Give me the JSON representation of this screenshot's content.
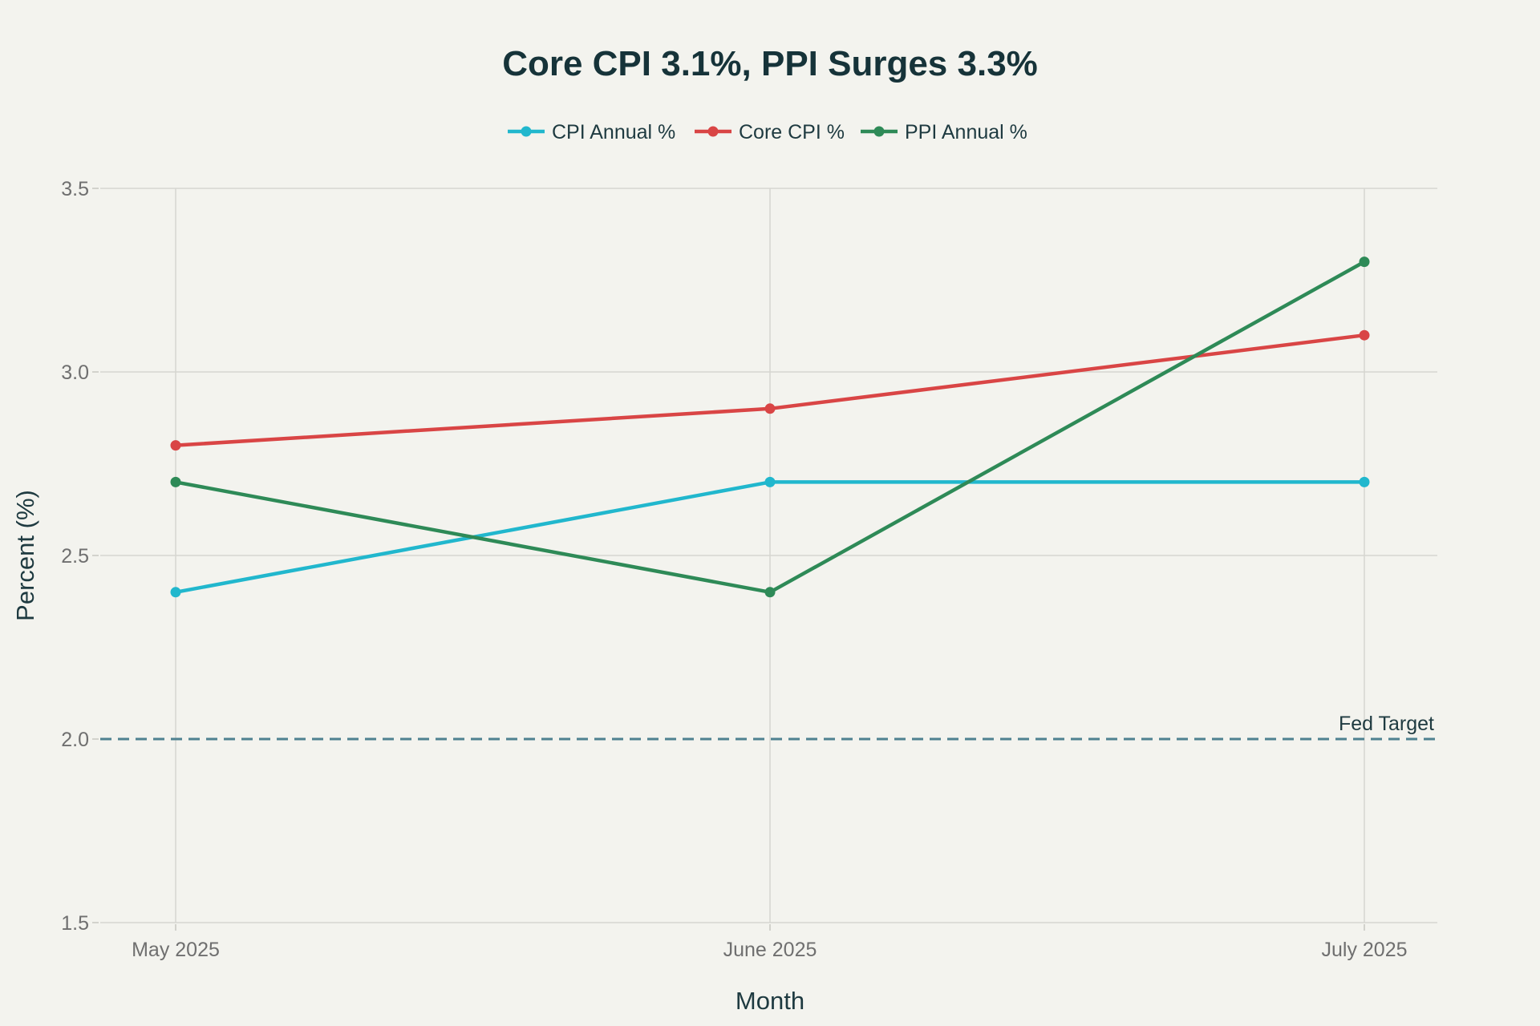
{
  "chart_data": {
    "type": "line",
    "title": "Core CPI 3.1%, PPI Surges 3.3%",
    "xlabel": "Month",
    "ylabel": "Percent (%)",
    "categories": [
      "May 2025",
      "June 2025",
      "July 2025"
    ],
    "ylim": [
      1.5,
      3.5
    ],
    "yticks": [
      "1.5",
      "2.0",
      "2.5",
      "3.0",
      "3.5"
    ],
    "grid": true,
    "legend_position": "top-center",
    "series": [
      {
        "name": "CPI Annual %",
        "color": "#21b7cd",
        "values": [
          2.4,
          2.7,
          2.7
        ]
      },
      {
        "name": "Core CPI %",
        "color": "#d94545",
        "values": [
          2.8,
          2.9,
          3.1
        ]
      },
      {
        "name": "PPI Annual %",
        "color": "#2e8a57",
        "values": [
          2.7,
          2.4,
          3.3
        ]
      }
    ],
    "reference_line": {
      "label": "Fed Target",
      "value": 2.0,
      "color": "#4e8190",
      "style": "dashed"
    }
  }
}
